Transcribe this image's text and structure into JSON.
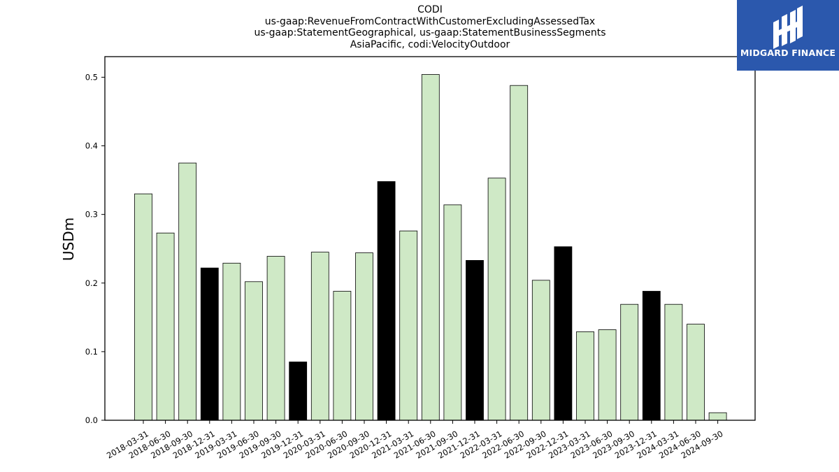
{
  "chart_data": {
    "type": "bar",
    "title_lines": [
      "CODI",
      "us-gaap:RevenueFromContractWithCustomerExcludingAssessedTax",
      "us-gaap:StatementGeographical, us-gaap:StatementBusinessSegments",
      "AsiaPacific, codi:VelocityOutdoor"
    ],
    "ylabel": "USDm",
    "ylim": [
      0,
      0.53
    ],
    "yticks": [
      "0.0",
      "0.1",
      "0.2",
      "0.3",
      "0.4",
      "0.5"
    ],
    "categories": [
      "2018-03-31",
      "2018-06-30",
      "2018-09-30",
      "2018-12-31",
      "2019-03-31",
      "2019-06-30",
      "2019-09-30",
      "2019-12-31",
      "2020-03-31",
      "2020-06-30",
      "2020-09-30",
      "2020-12-31",
      "2021-03-31",
      "2021-06-30",
      "2021-09-30",
      "2021-12-31",
      "2022-03-31",
      "2022-06-30",
      "2022-09-30",
      "2022-12-31",
      "2023-03-31",
      "2023-06-30",
      "2023-09-30",
      "2023-12-31",
      "2024-03-31",
      "2024-06-30",
      "2024-09-30"
    ],
    "values": [
      0.33,
      0.273,
      0.375,
      0.222,
      0.229,
      0.202,
      0.239,
      0.085,
      0.245,
      0.188,
      0.244,
      0.348,
      0.276,
      0.504,
      0.314,
      0.233,
      0.353,
      0.488,
      0.204,
      0.253,
      0.129,
      0.132,
      0.169,
      0.188,
      0.169,
      0.14,
      0.011
    ],
    "highlight": [
      false,
      false,
      false,
      true,
      false,
      false,
      false,
      true,
      false,
      false,
      false,
      true,
      false,
      false,
      false,
      true,
      false,
      false,
      false,
      true,
      false,
      false,
      false,
      true,
      false,
      false,
      false
    ],
    "colors": {
      "normal": "#cfe9c6",
      "highlight": "#000000",
      "edge": "#000000"
    },
    "grid": false
  },
  "logo": {
    "text": "MIDGARD FINANCE",
    "bg_color": "#2b58ad"
  }
}
